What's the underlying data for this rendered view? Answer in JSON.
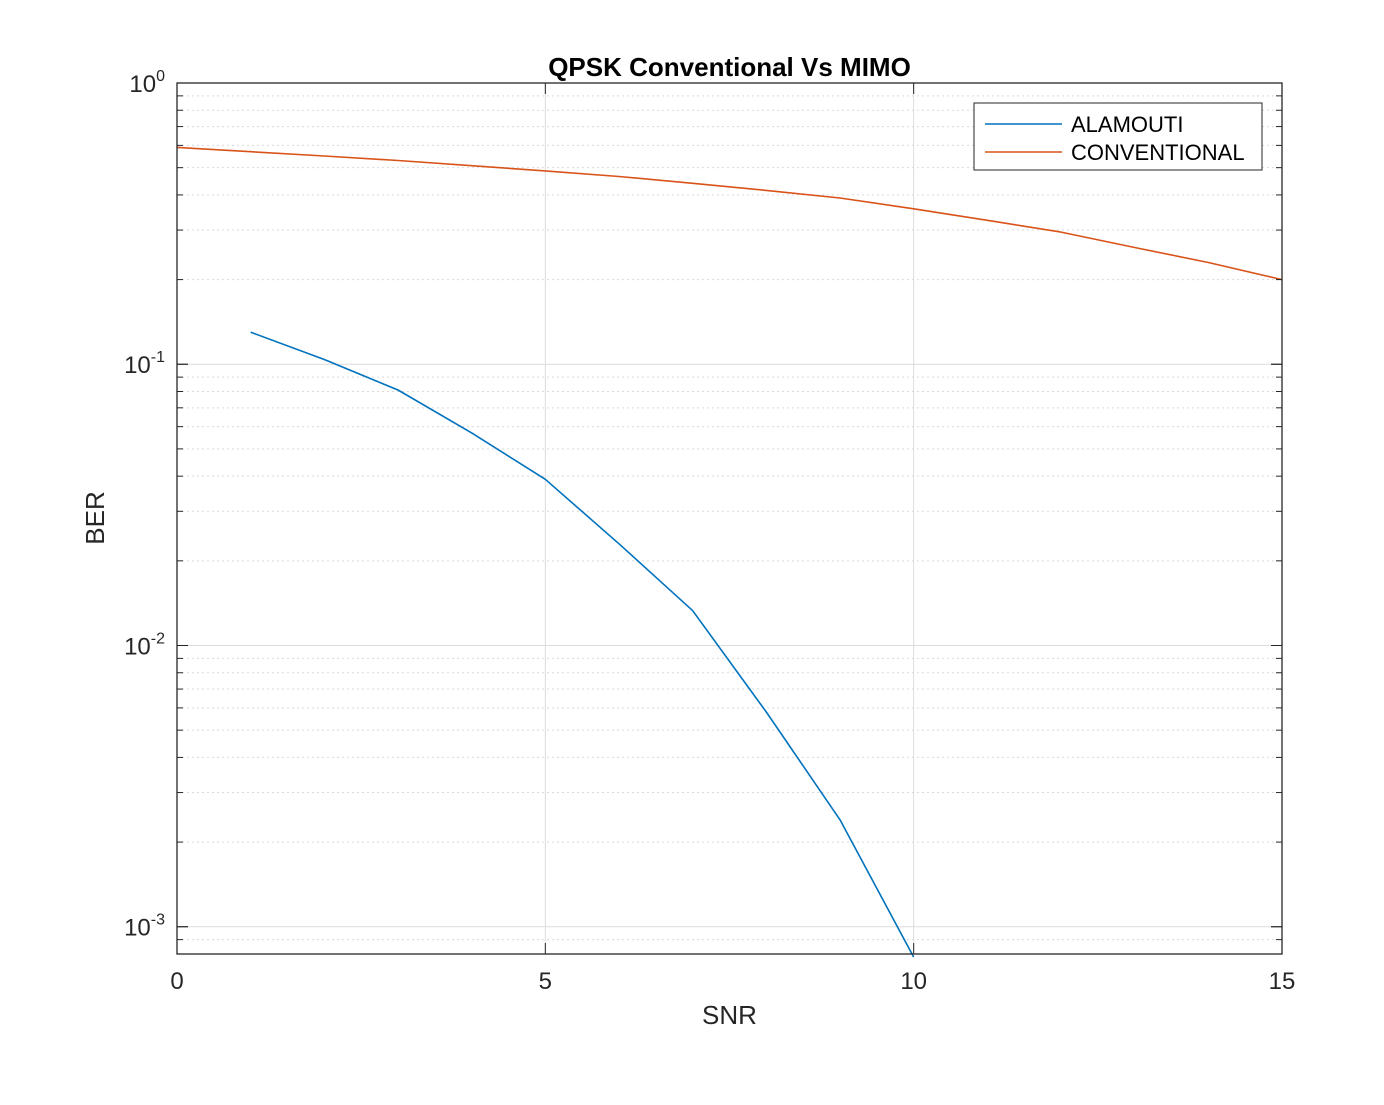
{
  "chart_data": {
    "type": "line",
    "title": "QPSK Conventional Vs MIMO",
    "xlabel": "SNR",
    "ylabel": "BER",
    "xlim": [
      0,
      15
    ],
    "ylim": [
      0.0008,
      1
    ],
    "yscale": "log",
    "grid": true,
    "legend_placement": "top-right",
    "x_ticks": [
      0,
      5,
      10,
      15
    ],
    "x_tick_labels": [
      "0",
      "5",
      "10",
      "15"
    ],
    "y_ticks": [
      {
        "value": 1,
        "base": "10",
        "exp": "0"
      },
      {
        "value": 0.1,
        "base": "10",
        "exp": "-1"
      },
      {
        "value": 0.01,
        "base": "10",
        "exp": "-2"
      },
      {
        "value": 0.001,
        "base": "10",
        "exp": "-3"
      }
    ],
    "series": [
      {
        "name": "ALAMOUTI",
        "color": "#0072BD",
        "x": [
          1,
          2,
          3,
          4,
          5,
          6,
          7,
          8,
          9,
          10
        ],
        "y": [
          0.13,
          0.104,
          0.081,
          0.057,
          0.039,
          0.023,
          0.0133,
          0.0058,
          0.0024,
          0.00078
        ]
      },
      {
        "name": "CONVENTIONAL",
        "color": "#D95319",
        "x": [
          0,
          1,
          2,
          3,
          4,
          5,
          6,
          7,
          8,
          9,
          10,
          11,
          12,
          13,
          14,
          15
        ],
        "y": [
          0.59,
          0.57,
          0.55,
          0.53,
          0.508,
          0.487,
          0.465,
          0.44,
          0.415,
          0.39,
          0.357,
          0.325,
          0.295,
          0.26,
          0.23,
          0.2
        ]
      }
    ]
  }
}
